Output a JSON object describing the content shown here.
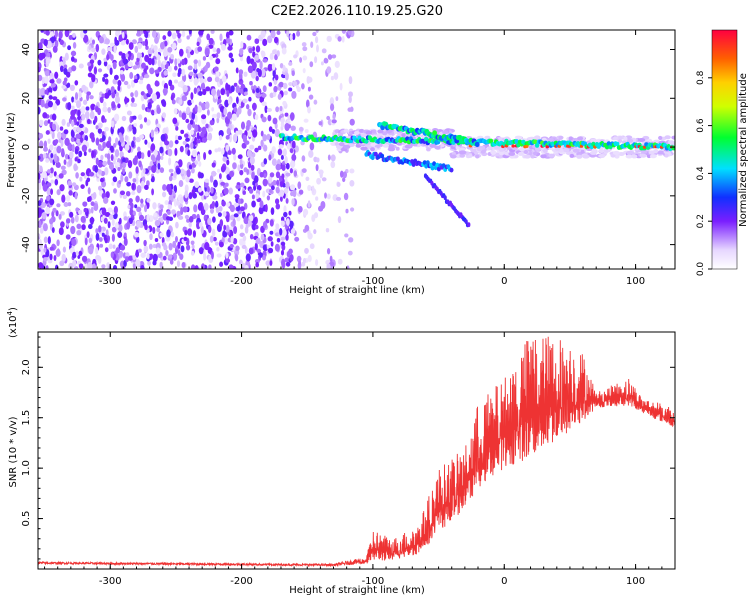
{
  "title": "C2E2.2026.110.19.25.G20",
  "chart_data": [
    {
      "type": "heatmap",
      "name": "spectrogram",
      "xlabel": "Height of straight line (km)",
      "ylabel": "Frequency (Hz)",
      "xlim": [
        -355,
        130
      ],
      "ylim": [
        -50,
        48
      ],
      "x_ticks": [
        -300,
        -200,
        -100,
        0,
        100
      ],
      "x_tick_labels": [
        "-300",
        "-200",
        "-100",
        "0",
        "100"
      ],
      "y_ticks": [
        -40,
        -20,
        0,
        20,
        40
      ],
      "y_tick_labels": [
        "-40",
        "-20",
        "0",
        "20",
        "40"
      ],
      "colorbar": {
        "label": "Normalized spectral amplitude",
        "range": [
          0,
          1
        ],
        "ticks": [
          0.0,
          0.2,
          0.4,
          0.6,
          0.8
        ],
        "tick_labels": [
          "0.0",
          "0.2",
          "0.4",
          "0.6",
          "0.8"
        ]
      },
      "features": [
        {
          "desc": "broadband noise",
          "x_range": [
            -355,
            -125
          ],
          "amplitude": 0.1
        },
        {
          "desc": "main line",
          "x_start": -170,
          "x_end": 130,
          "freq_start": 4,
          "freq_end": 0,
          "amplitude_max": 0.9
        },
        {
          "desc": "upper branch",
          "x_start": -95,
          "x_end": -20,
          "freq_start": 9,
          "freq_end": 2
        },
        {
          "desc": "descending tail",
          "x_start": -60,
          "x_end": -27,
          "freq_start": -12,
          "freq_end": -32
        }
      ]
    },
    {
      "type": "line",
      "name": "snr",
      "xlabel": "Height of straight line (km)",
      "ylabel": "SNR (10 * v/v)",
      "multiplier_label": "(x10",
      "multiplier_exp": "4",
      "multiplier_close": ")",
      "xlim": [
        -355,
        130
      ],
      "ylim": [
        0,
        2.35
      ],
      "x_ticks": [
        -300,
        -200,
        -100,
        0,
        100
      ],
      "x_tick_labels": [
        "-300",
        "-200",
        "-100",
        "0",
        "100"
      ],
      "y_ticks": [
        0.5,
        1.0,
        1.5,
        2.0
      ],
      "y_tick_labels": [
        "0.5",
        "1.0",
        "1.5",
        "2.0"
      ],
      "series_color": "#ee3333",
      "envelope": [
        {
          "x": -355,
          "base": 0.05,
          "peak": 0.07
        },
        {
          "x": -130,
          "base": 0.03,
          "peak": 0.05
        },
        {
          "x": -105,
          "base": 0.05,
          "peak": 0.12
        },
        {
          "x": -100,
          "base": 0.08,
          "peak": 0.4
        },
        {
          "x": -85,
          "base": 0.08,
          "peak": 0.3
        },
        {
          "x": -65,
          "base": 0.15,
          "peak": 0.45
        },
        {
          "x": -50,
          "base": 0.35,
          "peak": 1.0
        },
        {
          "x": -30,
          "base": 0.6,
          "peak": 1.2
        },
        {
          "x": -20,
          "base": 0.8,
          "peak": 1.65
        },
        {
          "x": 0,
          "base": 1.0,
          "peak": 1.9
        },
        {
          "x": 20,
          "base": 1.1,
          "peak": 2.35
        },
        {
          "x": 45,
          "base": 1.3,
          "peak": 2.3
        },
        {
          "x": 60,
          "base": 1.45,
          "peak": 2.15
        },
        {
          "x": 70,
          "base": 1.6,
          "peak": 1.75
        },
        {
          "x": 95,
          "base": 1.62,
          "peak": 1.9
        },
        {
          "x": 105,
          "base": 1.55,
          "peak": 1.7
        },
        {
          "x": 130,
          "base": 1.4,
          "peak": 1.6
        }
      ]
    }
  ]
}
